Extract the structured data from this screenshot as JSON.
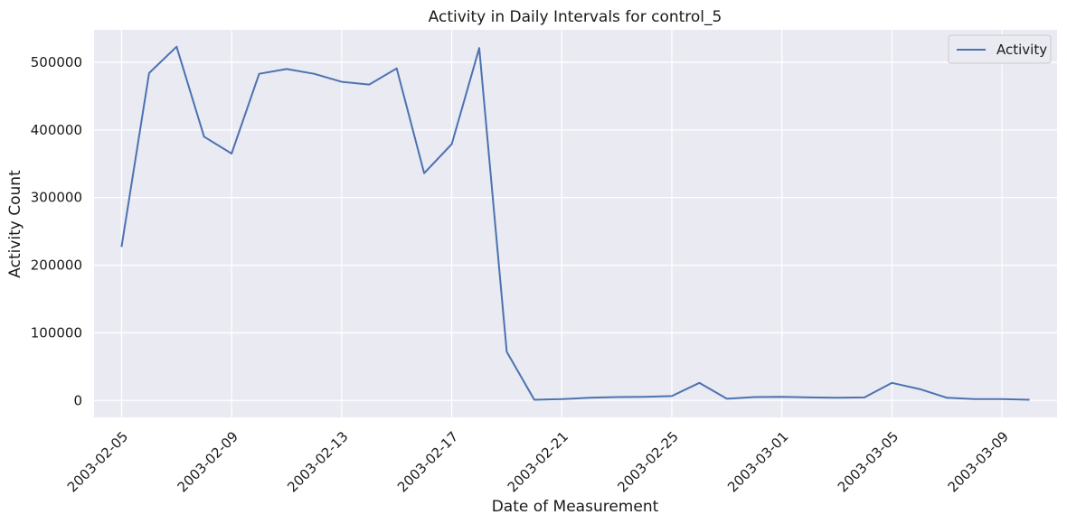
{
  "chart_data": {
    "type": "line",
    "title": "Activity in Daily Intervals for control_5",
    "xlabel": "Date of Measurement",
    "ylabel": "Activity Count",
    "x_tick_labels": [
      "2003-02-05",
      "2003-02-09",
      "2003-02-13",
      "2003-02-17",
      "2003-02-21",
      "2003-02-25",
      "2003-03-01",
      "2003-03-05",
      "2003-03-09"
    ],
    "y_tick_labels": [
      "0",
      "100000",
      "200000",
      "300000",
      "400000",
      "500000"
    ],
    "y_ticks": [
      0,
      100000,
      200000,
      300000,
      400000,
      500000
    ],
    "ylim": [
      -25000,
      548000
    ],
    "xlim": [
      "2003-02-04",
      "2003-03-11"
    ],
    "grid": true,
    "legend_position": "top-right",
    "colors": {
      "plot_background": "#eaeaf2",
      "grid": "#ffffff",
      "series": "#4c72b0"
    },
    "series": [
      {
        "name": "Activity",
        "color": "#4c72b0",
        "points": [
          [
            "2003-02-05",
            227000
          ],
          [
            "2003-02-06",
            484000
          ],
          [
            "2003-02-07",
            523000
          ],
          [
            "2003-02-08",
            390000
          ],
          [
            "2003-02-09",
            365000
          ],
          [
            "2003-02-10",
            483000
          ],
          [
            "2003-02-11",
            490000
          ],
          [
            "2003-02-12",
            483000
          ],
          [
            "2003-02-13",
            471000
          ],
          [
            "2003-02-14",
            467000
          ],
          [
            "2003-02-15",
            491000
          ],
          [
            "2003-02-16",
            336000
          ],
          [
            "2003-02-17",
            379000
          ],
          [
            "2003-02-18",
            521000
          ],
          [
            "2003-02-19",
            72000
          ],
          [
            "2003-02-20",
            1000
          ],
          [
            "2003-02-21",
            2000
          ],
          [
            "2003-02-22",
            4000
          ],
          [
            "2003-02-23",
            5000
          ],
          [
            "2003-02-24",
            5500
          ],
          [
            "2003-02-25",
            6500
          ],
          [
            "2003-02-26",
            26000
          ],
          [
            "2003-02-27",
            2500
          ],
          [
            "2003-02-28",
            5000
          ],
          [
            "2003-03-01",
            5500
          ],
          [
            "2003-03-02",
            4500
          ],
          [
            "2003-03-03",
            4000
          ],
          [
            "2003-03-04",
            4500
          ],
          [
            "2003-03-05",
            26000
          ],
          [
            "2003-03-06",
            17000
          ],
          [
            "2003-03-07",
            4000
          ],
          [
            "2003-03-08",
            2000
          ],
          [
            "2003-03-09",
            2000
          ],
          [
            "2003-03-10",
            1000
          ]
        ]
      }
    ]
  }
}
